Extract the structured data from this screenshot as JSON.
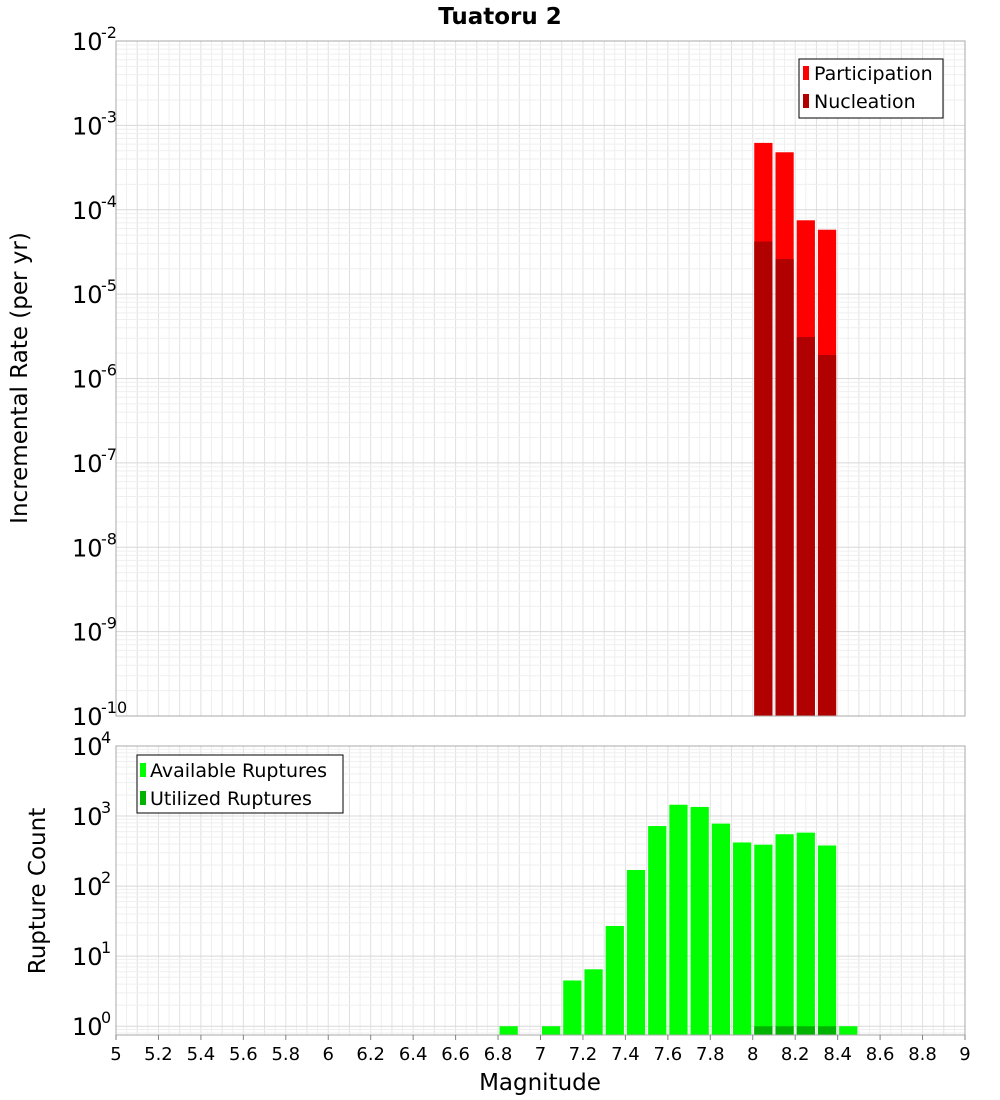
{
  "chart_data": [
    {
      "type": "bar",
      "title": "Tuatoru 2",
      "ylabel": "Incremental Rate (per yr)",
      "xlabel": "",
      "xlim": [
        5,
        9
      ],
      "yscale": "log",
      "ylim": [
        1e-10,
        0.01
      ],
      "y_tick_labels": [
        {
          "base": "10",
          "exp": "-2"
        },
        {
          "base": "10",
          "exp": "-3"
        },
        {
          "base": "10",
          "exp": "-4"
        },
        {
          "base": "10",
          "exp": "-5"
        },
        {
          "base": "10",
          "exp": "-6"
        },
        {
          "base": "10",
          "exp": "-7"
        },
        {
          "base": "10",
          "exp": "-8"
        },
        {
          "base": "10",
          "exp": "-9"
        },
        {
          "base": "10",
          "exp": "-10"
        }
      ],
      "grid": true,
      "legend_position": "top-right",
      "legend": [
        "Participation",
        "Nucleation"
      ],
      "bin_width": 0.1,
      "series": [
        {
          "name": "Participation",
          "color": "#ff0000",
          "x": [
            8.05,
            8.15,
            8.25,
            8.35
          ],
          "values": [
            0.00062,
            0.00048,
            7.5e-05,
            5.8e-05
          ]
        },
        {
          "name": "Nucleation",
          "color": "#b00000",
          "x": [
            8.05,
            8.15,
            8.25,
            8.35
          ],
          "values": [
            4.2e-05,
            2.6e-05,
            3.1e-06,
            1.9e-06
          ]
        }
      ]
    },
    {
      "type": "bar",
      "title": "",
      "ylabel": "Rupture Count",
      "xlabel": "Magnitude",
      "xlim": [
        5,
        9
      ],
      "x_ticks": [
        "5",
        "5.2",
        "5.4",
        "5.6",
        "5.8",
        "6",
        "6.2",
        "6.4",
        "6.6",
        "6.8",
        "7",
        "7.2",
        "7.4",
        "7.6",
        "7.8",
        "8",
        "8.2",
        "8.4",
        "8.6",
        "8.8",
        "9"
      ],
      "yscale": "log",
      "ylim": [
        0.75,
        10000
      ],
      "y_tick_labels": [
        {
          "base": "10",
          "exp": "4"
        },
        {
          "base": "10",
          "exp": "3"
        },
        {
          "base": "10",
          "exp": "2"
        },
        {
          "base": "10",
          "exp": "1"
        },
        {
          "base": "10",
          "exp": "0"
        }
      ],
      "grid": true,
      "legend_position": "top-left",
      "legend": [
        "Available Ruptures",
        "Utilized Ruptures"
      ],
      "bin_width": 0.1,
      "series": [
        {
          "name": "Available Ruptures",
          "color": "#00ff00",
          "x": [
            6.85,
            7.05,
            7.15,
            7.25,
            7.35,
            7.45,
            7.55,
            7.65,
            7.75,
            7.85,
            7.95,
            8.05,
            8.15,
            8.25,
            8.35,
            8.45
          ],
          "values": [
            1,
            1,
            4.5,
            6.5,
            27,
            170,
            720,
            1450,
            1350,
            780,
            420,
            390,
            550,
            580,
            380,
            1
          ]
        },
        {
          "name": "Utilized Ruptures",
          "color": "#00b300",
          "x": [
            8.05,
            8.15,
            8.25,
            8.35
          ],
          "values": [
            1,
            1,
            1,
            1
          ]
        }
      ]
    }
  ]
}
